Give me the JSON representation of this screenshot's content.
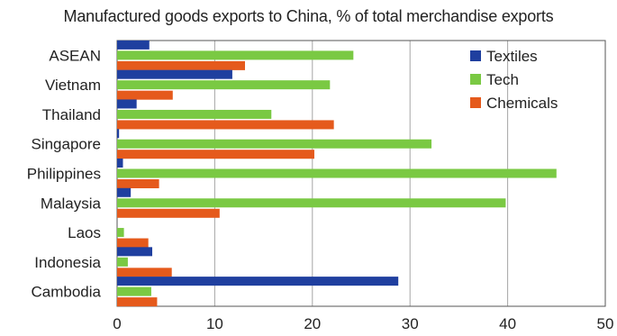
{
  "chart_data": {
    "type": "bar",
    "orientation": "horizontal",
    "title": "Manufactured goods exports to China, % of total merchandise exports",
    "categories": [
      "ASEAN",
      "Vietnam",
      "Thailand",
      "Singapore",
      "Philippines",
      "Malaysia",
      "Laos",
      "Indonesia",
      "Cambodia"
    ],
    "series": [
      {
        "name": "Textiles",
        "color": "#1f3f9f",
        "values": [
          3.3,
          11.8,
          2.0,
          0.2,
          0.6,
          1.4,
          0.0,
          3.6,
          28.8
        ]
      },
      {
        "name": "Tech",
        "color": "#7ac943",
        "values": [
          24.2,
          21.8,
          15.8,
          32.2,
          45.0,
          39.8,
          0.7,
          1.1,
          3.5
        ]
      },
      {
        "name": "Chemicals",
        "color": "#e55a1c",
        "values": [
          13.1,
          5.7,
          22.2,
          20.2,
          4.3,
          10.5,
          3.2,
          5.6,
          4.1
        ]
      }
    ],
    "xlim": [
      0,
      50
    ],
    "xticks": [
      "0",
      "10",
      "20",
      "30",
      "40",
      "50"
    ],
    "grid": true,
    "legend_position": "top-right"
  }
}
